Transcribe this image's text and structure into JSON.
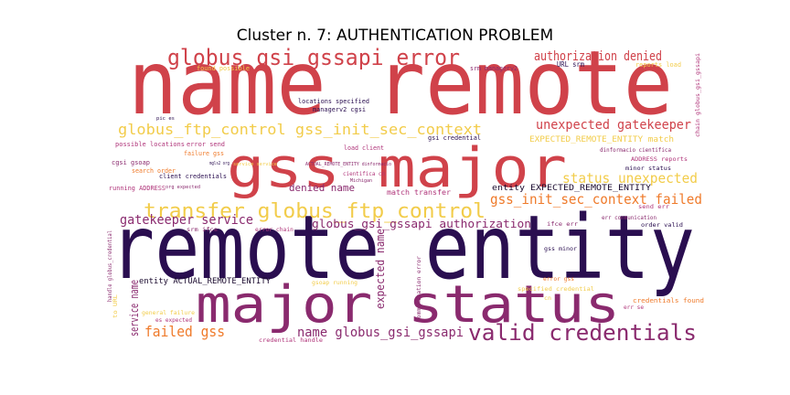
{
  "title": "Cluster n. 7: AUTHENTICATION PROBLEM",
  "palette": {
    "red": "#d0424a",
    "orange": "#ef7a2a",
    "yellow": "#f2cc4a",
    "purple": "#8a2a6e",
    "dark": "#2a0e50",
    "pink": "#b0357a",
    "black": "#1a0a2e"
  },
  "words": [
    {
      "text": "name remote",
      "color": "red"
    },
    {
      "text": "gss major",
      "color": "red"
    },
    {
      "text": "remote entity",
      "color": "dark"
    },
    {
      "text": "major status",
      "color": "purple"
    },
    {
      "text": "globus_gsi_gssapi error",
      "color": "red"
    },
    {
      "text": "transfer globus_ftp_control",
      "color": "yellow"
    },
    {
      "text": "globus_ftp_control gss_init_sec_context",
      "color": "yellow"
    },
    {
      "text": "valid credentials",
      "color": "purple"
    },
    {
      "text": "authorization denied",
      "color": "red"
    },
    {
      "text": "unexpected gatekeeper",
      "color": "red"
    },
    {
      "text": "gss_init_sec_context failed",
      "color": "orange"
    },
    {
      "text": "status unexpected",
      "color": "yellow"
    },
    {
      "text": "gatekeeper service",
      "color": "purple"
    },
    {
      "text": "globus_gsi_gssapi authorization",
      "color": "purple"
    },
    {
      "text": "denied name",
      "color": "purple"
    },
    {
      "text": "failed gss",
      "color": "orange"
    },
    {
      "text": "name globus_gsi_gssapi",
      "color": "purple"
    },
    {
      "text": "service name",
      "color": "purple"
    },
    {
      "text": "expected name",
      "color": "purple"
    },
    {
      "text": "EXPECTED_REMOTE_ENTITY match",
      "color": "yellow"
    },
    {
      "text": "entity EXPECTED_REMOTE_ENTITY",
      "color": "black"
    },
    {
      "text": "entity ACTUAL_REMOTE_ENTITY",
      "color": "black"
    },
    {
      "text": "match transfer",
      "color": "pink"
    },
    {
      "text": "found possible",
      "color": "yellow"
    },
    {
      "text": "reports load",
      "color": "yellow"
    },
    {
      "text": "URL srm",
      "color": "dark"
    },
    {
      "text": "srm managerv2",
      "color": "purple"
    },
    {
      "text": "locations specified",
      "color": "dark"
    },
    {
      "text": "managerv2 cgsi",
      "color": "dark"
    },
    {
      "text": "gsi credential",
      "color": "dark"
    },
    {
      "text": "load client",
      "color": "pink"
    },
    {
      "text": "possible locations",
      "color": "pink"
    },
    {
      "text": "error send",
      "color": "pink"
    },
    {
      "text": "failure gss",
      "color": "orange"
    },
    {
      "text": "cgsi gsoap",
      "color": "purple"
    },
    {
      "text": "search order",
      "color": "orange"
    },
    {
      "text": "client credentials",
      "color": "dark"
    },
    {
      "text": "running ADDRESS",
      "color": "pink"
    },
    {
      "text": "cientifica cn",
      "color": "pink"
    },
    {
      "text": "dinformacio cientifica",
      "color": "purple"
    },
    {
      "text": "ADDRESS reports",
      "color": "pink"
    },
    {
      "text": "minor status",
      "color": "dark"
    },
    {
      "text": "send err",
      "color": "pink"
    },
    {
      "text": "err communication",
      "color": "purple"
    },
    {
      "text": "order valid",
      "color": "dark"
    },
    {
      "text": "srm ifce",
      "color": "purple"
    },
    {
      "text": "error chain",
      "color": "pink"
    },
    {
      "text": "ifce err",
      "color": "purple"
    },
    {
      "text": "gss minor",
      "color": "dark"
    },
    {
      "text": "error gss",
      "color": "orange"
    },
    {
      "text": "specified credential",
      "color": "yellow"
    },
    {
      "text": "credentials found",
      "color": "orange"
    },
    {
      "text": "err se",
      "color": "pink"
    },
    {
      "text": "credential handle",
      "color": "pink"
    },
    {
      "text": "communication error",
      "color": "purple"
    },
    {
      "text": "handle globus_credential",
      "color": "purple"
    },
    {
      "text": "general failure",
      "color": "yellow"
    },
    {
      "text": "es expected",
      "color": "pink"
    },
    {
      "text": "chain globus_gsi_gssapi",
      "color": "pink"
    },
    {
      "text": "gsoap running",
      "color": "yellow"
    },
    {
      "text": "ACTUAL_REMOTE_ENTITY dinformacio",
      "color": "purple"
    },
    {
      "text": "pic es",
      "color": "dark"
    },
    {
      "text": "mgls2 org",
      "color": "dark"
    },
    {
      "text": "org expected",
      "color": "purple"
    },
    {
      "text": "Michigan",
      "color": "purple"
    },
    {
      "text": "to URL",
      "color": "yellow"
    },
    {
      "text": "service service",
      "color": "yellow"
    },
    {
      "text": "cn",
      "color": "yellow"
    }
  ]
}
